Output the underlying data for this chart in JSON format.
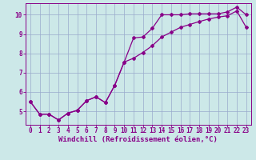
{
  "xlabel": "Windchill (Refroidissement éolien,°C)",
  "bg_color": "#cce8e8",
  "line_color": "#880088",
  "grid_color": "#99aacc",
  "xlim": [
    -0.5,
    23.5
  ],
  "ylim": [
    4.3,
    10.6
  ],
  "xticks": [
    0,
    1,
    2,
    3,
    4,
    5,
    6,
    7,
    8,
    9,
    10,
    11,
    12,
    13,
    14,
    15,
    16,
    17,
    18,
    19,
    20,
    21,
    22,
    23
  ],
  "yticks": [
    5,
    6,
    7,
    8,
    9,
    10
  ],
  "line1_x": [
    0,
    1,
    2,
    3,
    4,
    5,
    6,
    7,
    8,
    9,
    10,
    11,
    12,
    13,
    14,
    15,
    16,
    17,
    18,
    19,
    20,
    21,
    22,
    23
  ],
  "line1_y": [
    5.5,
    4.85,
    4.85,
    4.55,
    4.9,
    5.05,
    5.55,
    5.75,
    5.45,
    6.35,
    7.55,
    8.8,
    8.85,
    9.3,
    10.0,
    10.0,
    10.0,
    10.05,
    10.05,
    10.05,
    10.05,
    10.15,
    10.4,
    10.0
  ],
  "line2_x": [
    0,
    1,
    2,
    3,
    4,
    5,
    6,
    7,
    8,
    9,
    10,
    11,
    12,
    13,
    14,
    15,
    16,
    17,
    18,
    19,
    20,
    21,
    22,
    23
  ],
  "line2_y": [
    5.5,
    4.85,
    4.85,
    4.55,
    4.9,
    5.05,
    5.55,
    5.75,
    5.45,
    6.35,
    7.55,
    7.75,
    8.05,
    8.4,
    8.85,
    9.1,
    9.35,
    9.5,
    9.65,
    9.78,
    9.88,
    9.95,
    10.2,
    9.35
  ],
  "fontsize_label": 6.5,
  "fontsize_tick": 5.5,
  "marker": "D",
  "marker_size": 2.0,
  "linewidth": 0.9
}
